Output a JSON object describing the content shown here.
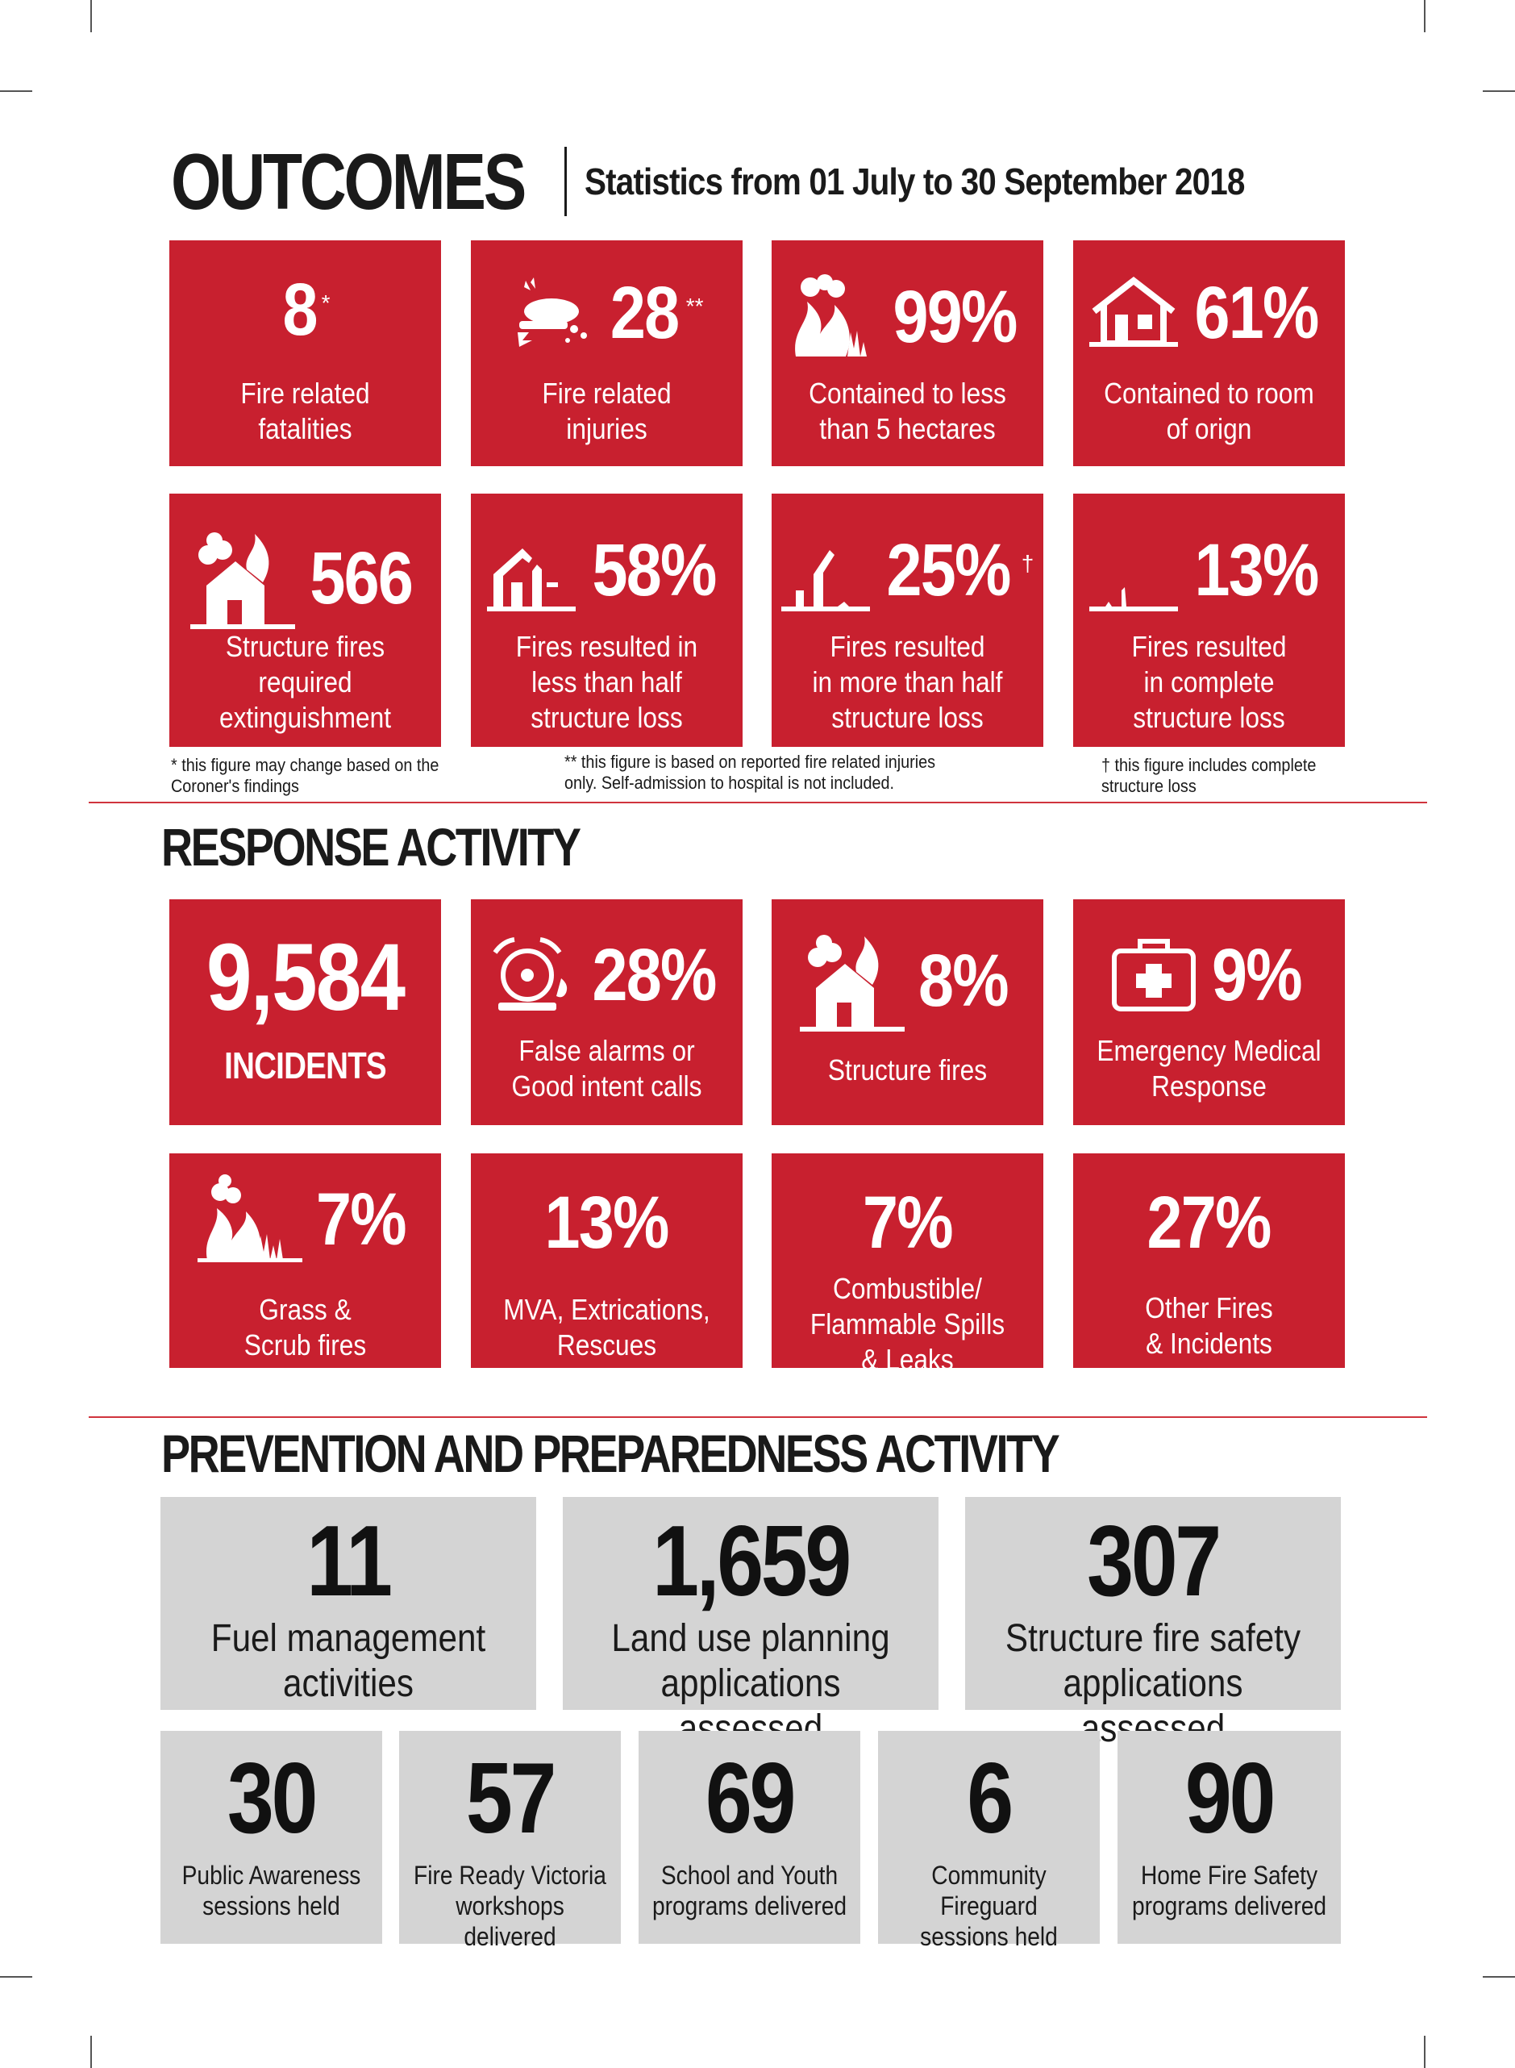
{
  "header": {
    "title": "OUTCOMES",
    "subtitle": "Statistics from 01 July to 30 September 2018"
  },
  "outcomes": [
    {
      "value": "8",
      "mark": "*",
      "label": "Fire related\nfatalities",
      "icon": ""
    },
    {
      "value": "28",
      "mark": "**",
      "label": "Fire related\ninjuries",
      "icon": "injured-person-icon"
    },
    {
      "value": "99%",
      "mark": "",
      "label": "Contained to less\nthan 5 hectares",
      "icon": "bushfire-icon"
    },
    {
      "value": "61%",
      "mark": "",
      "label": "Contained to room\nof orign",
      "icon": "house-outline-icon"
    },
    {
      "value": "566",
      "mark": "",
      "label": "Structure fires\nrequired\nextinguishment",
      "icon": "house-fire-icon"
    },
    {
      "value": "58%",
      "mark": "",
      "label": "Fires resulted in\nless than half\nstructure loss",
      "icon": "partial-house-icon"
    },
    {
      "value": "25%",
      "mark": "†",
      "label": "Fires resulted\nin more than half\nstructure loss",
      "icon": "ruined-house-icon"
    },
    {
      "value": "13%",
      "mark": "",
      "label": "Fires resulted\nin complete\nstructure loss",
      "icon": "destroyed-house-icon"
    }
  ],
  "footnotes": [
    {
      "mark": "*",
      "text": "this figure may change based on the\nCoroner's findings"
    },
    {
      "mark": "**",
      "text": "this figure is based on reported fire related injuries\nonly. Self-admission to hospital is not included."
    },
    {
      "mark": "†",
      "text": "this figure includes complete\nstructure loss"
    }
  ],
  "response": {
    "heading": "RESPONSE ACTIVITY",
    "cards": [
      {
        "value": "9,584",
        "label": "INCIDENTS",
        "icon": ""
      },
      {
        "value": "28%",
        "label": "False alarms or\nGood intent calls",
        "icon": "alarm-bell-icon"
      },
      {
        "value": "8%",
        "label": "Structure fires",
        "icon": "house-fire-icon"
      },
      {
        "value": "9%",
        "label": "Emergency Medical\nResponse",
        "icon": "first-aid-kit-icon"
      },
      {
        "value": "7%",
        "label": "Grass &\nScrub fires",
        "icon": "grass-fire-icon"
      },
      {
        "value": "13%",
        "label": "MVA, Extrications,\nRescues",
        "icon": ""
      },
      {
        "value": "7%",
        "label": "Combustible/\nFlammable Spills\n& Leaks",
        "icon": ""
      },
      {
        "value": "27%",
        "label": "Other Fires\n& Incidents",
        "icon": ""
      }
    ]
  },
  "prevention": {
    "heading": "PREVENTION AND PREPAREDNESS ACTIVITY",
    "large": [
      {
        "value": "11",
        "label": "Fuel management\nactivities"
      },
      {
        "value": "1,659",
        "label": "Land use planning\napplications assessed"
      },
      {
        "value": "307",
        "label": "Structure fire safety\napplications assessed"
      }
    ],
    "small": [
      {
        "value": "30",
        "label": "Public Awareness\nsessions held"
      },
      {
        "value": "57",
        "label": "Fire Ready Victoria\nworkshops delivered"
      },
      {
        "value": "69",
        "label": "School and Youth\nprograms delivered"
      },
      {
        "value": "6",
        "label": "Community Fireguard\nsessions held"
      },
      {
        "value": "90",
        "label": "Home Fire Safety\nprograms delivered"
      }
    ]
  },
  "colors": {
    "red": "#c8202f",
    "grey": "#d4d4d4",
    "text": "#1a1a1a"
  }
}
